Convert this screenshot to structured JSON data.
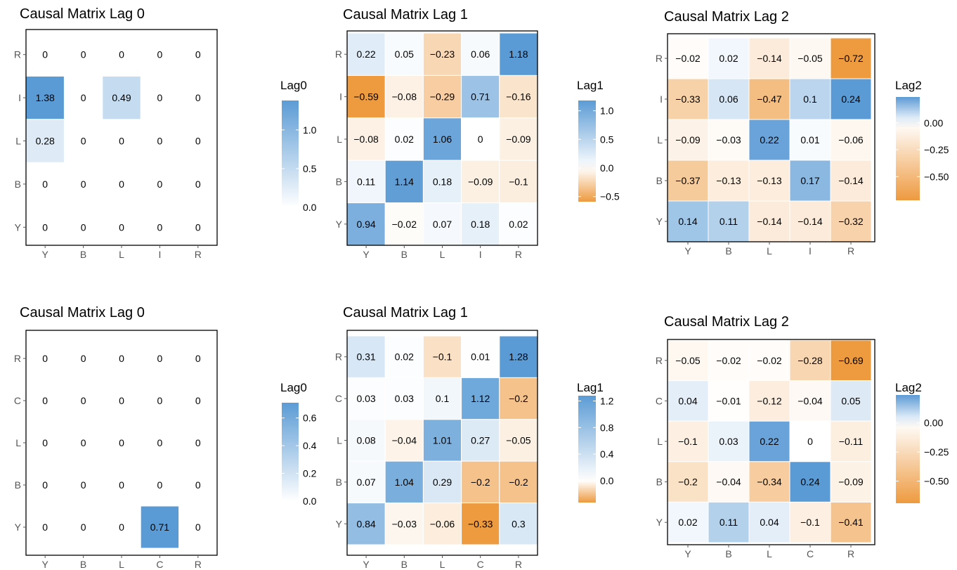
{
  "colors": {
    "positive": "#5b9bd5",
    "negative": "#ee9a3f",
    "neutral": "#ffffff",
    "border": "#000000",
    "tick": "#555555",
    "text": "#000000"
  },
  "chart_data": [
    {
      "type": "heatmap",
      "title": "Causal Matrix Lag 0",
      "x": [
        "Y",
        "B",
        "L",
        "I",
        "R"
      ],
      "y": [
        "R",
        "I",
        "L",
        "B",
        "Y"
      ],
      "values": [
        [
          0,
          0,
          0,
          0,
          0
        ],
        [
          1.38,
          0,
          0.49,
          0,
          0
        ],
        [
          0.28,
          0,
          0,
          0,
          0
        ],
        [
          0,
          0,
          0,
          0,
          0
        ],
        [
          0,
          0,
          0,
          0,
          0
        ]
      ],
      "blank_zeros": true,
      "legend": {
        "title": "Lag0",
        "ticks": [
          "1.0",
          "0.5",
          "0.0"
        ],
        "tick_values": [
          1.0,
          0.5,
          0.0
        ],
        "range": [
          0,
          1.38
        ]
      }
    },
    {
      "type": "heatmap",
      "title": "Causal Matrix Lag 1",
      "x": [
        "Y",
        "B",
        "L",
        "I",
        "R"
      ],
      "y": [
        "R",
        "I",
        "L",
        "B",
        "Y"
      ],
      "values": [
        [
          0.22,
          0.05,
          "−0.23",
          0.06,
          1.18
        ],
        [
          "−0.59",
          "−0.08",
          "−0.29",
          0.71,
          "−0.16"
        ],
        [
          "−0.08",
          0.02,
          1.06,
          0,
          "−0.09"
        ],
        [
          0.11,
          1.14,
          0.18,
          "−0.09",
          "−0.1"
        ],
        [
          0.94,
          "−0.02",
          0.07,
          0.18,
          0.02
        ]
      ],
      "blank_zeros": false,
      "legend": {
        "title": "Lag1",
        "ticks": [
          "1.0",
          "0.5",
          "0.0",
          "−0.5"
        ],
        "tick_values": [
          1.0,
          0.5,
          0.0,
          -0.5
        ],
        "range": [
          -0.59,
          1.18
        ]
      }
    },
    {
      "type": "heatmap",
      "title": "Causal Matrix Lag 2",
      "x": [
        "Y",
        "B",
        "L",
        "I",
        "R"
      ],
      "y": [
        "R",
        "I",
        "L",
        "B",
        "Y"
      ],
      "values": [
        [
          "−0.02",
          0.02,
          "−0.14",
          "−0.05",
          "−0.72"
        ],
        [
          "−0.33",
          0.06,
          "−0.47",
          0.1,
          0.24
        ],
        [
          "−0.09",
          "−0.03",
          0.22,
          0.01,
          "−0.06"
        ],
        [
          "−0.37",
          "−0.13",
          "−0.13",
          0.17,
          "−0.14"
        ],
        [
          0.14,
          0.11,
          "−0.14",
          "−0.14",
          "−0.32"
        ]
      ],
      "blank_zeros": false,
      "legend": {
        "title": "Lag2",
        "ticks": [
          "0.00",
          "−0.25",
          "−0.50"
        ],
        "tick_values": [
          0.0,
          -0.25,
          -0.5
        ],
        "range": [
          -0.72,
          0.24
        ]
      }
    },
    {
      "type": "heatmap",
      "title": "Causal Matrix Lag 0",
      "x": [
        "Y",
        "B",
        "L",
        "C",
        "R"
      ],
      "y": [
        "R",
        "C",
        "L",
        "B",
        "Y"
      ],
      "values": [
        [
          0,
          0,
          0,
          0,
          0
        ],
        [
          0,
          0,
          0,
          0,
          0
        ],
        [
          0,
          0,
          0,
          0,
          0
        ],
        [
          0,
          0,
          0,
          0,
          0
        ],
        [
          0,
          0,
          0,
          0.71,
          0
        ]
      ],
      "blank_zeros": true,
      "legend": {
        "title": "Lag0",
        "ticks": [
          "0.6",
          "0.4",
          "0.2",
          "0.0"
        ],
        "tick_values": [
          0.6,
          0.4,
          0.2,
          0.0
        ],
        "range": [
          0,
          0.71
        ]
      }
    },
    {
      "type": "heatmap",
      "title": "Causal Matrix Lag 1",
      "x": [
        "Y",
        "B",
        "L",
        "C",
        "R"
      ],
      "y": [
        "R",
        "C",
        "L",
        "B",
        "Y"
      ],
      "values": [
        [
          0.31,
          0.02,
          "−0.1",
          0.01,
          1.28
        ],
        [
          0.03,
          0.03,
          0.1,
          1.12,
          "−0.2"
        ],
        [
          0.08,
          "−0.04",
          1.01,
          0.27,
          "−0.05"
        ],
        [
          0.07,
          1.04,
          0.29,
          "−0.2",
          "−0.2"
        ],
        [
          0.84,
          "−0.03",
          "−0.06",
          "−0.33",
          0.3
        ]
      ],
      "blank_zeros": false,
      "legend": {
        "title": "Lag1",
        "ticks": [
          "1.2",
          "0.8",
          "0.4",
          "0.0"
        ],
        "tick_values": [
          1.2,
          0.8,
          0.4,
          0.0
        ],
        "range": [
          -0.33,
          1.28
        ]
      }
    },
    {
      "type": "heatmap",
      "title": "Causal Matrix Lag 2",
      "x": [
        "Y",
        "B",
        "L",
        "C",
        "R"
      ],
      "y": [
        "R",
        "C",
        "L",
        "B",
        "Y"
      ],
      "values": [
        [
          "−0.05",
          "−0.02",
          "−0.02",
          "−0.28",
          "−0.69"
        ],
        [
          0.04,
          "−0.01",
          "−0.12",
          "−0.04",
          0.05
        ],
        [
          "−0.1",
          0.03,
          0.22,
          0,
          "−0.11"
        ],
        [
          "−0.2",
          "−0.04",
          "−0.34",
          0.24,
          "−0.09"
        ],
        [
          0.02,
          0.11,
          0.04,
          "−0.1",
          "−0.41"
        ]
      ],
      "blank_zeros": false,
      "legend": {
        "title": "Lag2",
        "ticks": [
          "0.00",
          "−0.25",
          "−0.50"
        ],
        "tick_values": [
          0.0,
          -0.25,
          -0.5
        ],
        "range": [
          -0.69,
          0.24
        ]
      }
    }
  ]
}
